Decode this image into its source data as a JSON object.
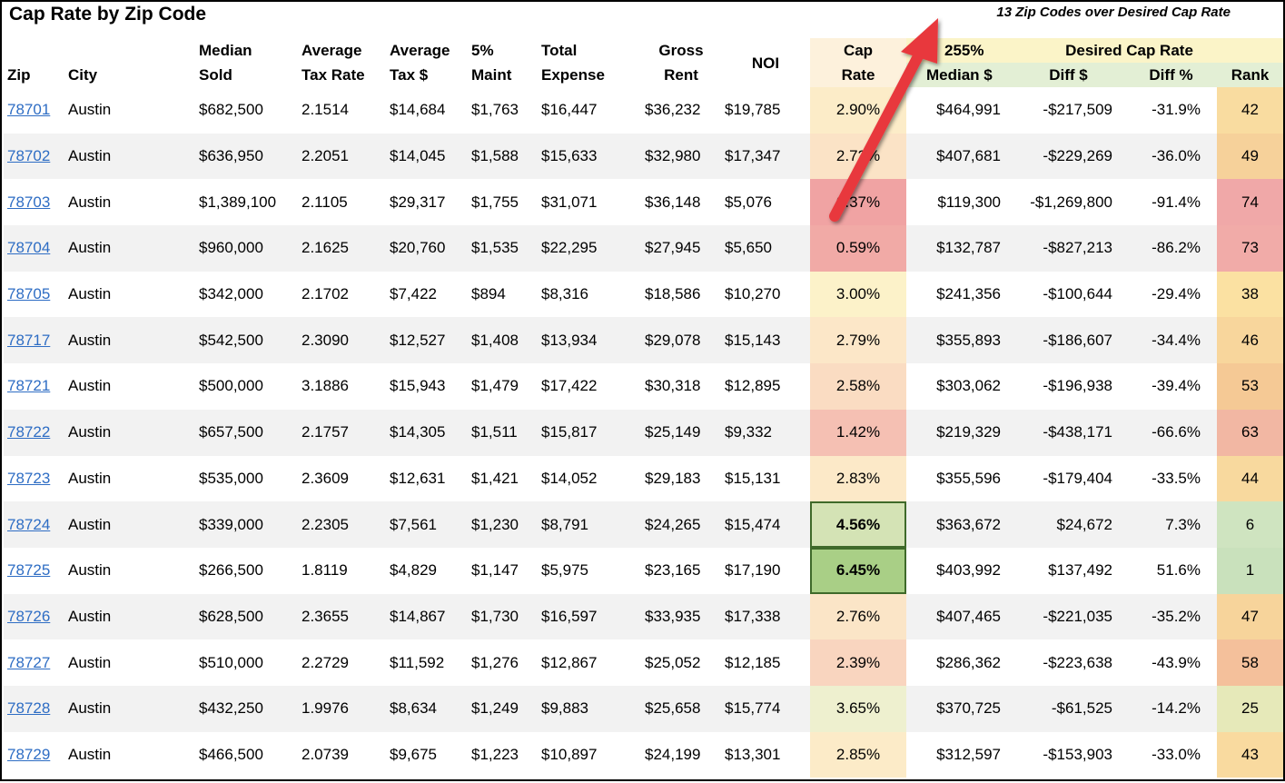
{
  "title": "Cap Rate by Zip Code",
  "annotation": "13 Zip Codes over Desired Cap Rate",
  "group_headers": {
    "median_255_top": "255%",
    "desired_cap_rate": "Desired Cap Rate"
  },
  "columns": {
    "zip": "Zip",
    "city": "City",
    "median_sold_1": "Median",
    "median_sold_2": "Sold",
    "avg_tax_rate_1": "Average",
    "avg_tax_rate_2": "Tax Rate",
    "avg_tax_1": "Average",
    "avg_tax_2": "Tax $",
    "maint_1": "5%",
    "maint_2": "Maint",
    "total_exp_1": "Total",
    "total_exp_2": "Expense",
    "gross_rent_1": "Gross",
    "gross_rent_2": "Rent",
    "noi": "NOI",
    "cap_rate_1": "Cap",
    "cap_rate_2": "Rate",
    "median_dollar": "Median $",
    "diff_dollar": "Diff $",
    "diff_pct": "Diff %",
    "rank": "Rank"
  },
  "rows": [
    {
      "zip": "78701",
      "city": "Austin",
      "median": "$682,500",
      "tax_rate": "2.1514",
      "tax": "$14,684",
      "maint": "$1,763",
      "expense": "$16,447",
      "gross": "$36,232",
      "noi": "$19,785",
      "cap": "2.90%",
      "median255": "$464,991",
      "diff": "-$217,509",
      "diffp": "-31.9%",
      "rank": "42",
      "cap_color": "#fcecc8",
      "rank_color": "#f9dca0"
    },
    {
      "zip": "78702",
      "city": "Austin",
      "median": "$636,950",
      "tax_rate": "2.2051",
      "tax": "$14,045",
      "maint": "$1,588",
      "expense": "$15,633",
      "gross": "$32,980",
      "noi": "$17,347",
      "cap": "2.72%",
      "median255": "$407,681",
      "diff": "-$229,269",
      "diffp": "-36.0%",
      "rank": "49",
      "cap_color": "#fbe3c6",
      "rank_color": "#f6d19a"
    },
    {
      "zip": "78703",
      "city": "Austin",
      "median": "$1,389,100",
      "tax_rate": "2.1105",
      "tax": "$29,317",
      "maint": "$1,755",
      "expense": "$31,071",
      "gross": "$36,148",
      "noi": "$5,076",
      "cap": "0.37%",
      "median255": "$119,300",
      "diff": "-$1,269,800",
      "diffp": "-91.4%",
      "rank": "74",
      "cap_color": "#f0a3a3",
      "rank_color": "#f0a8a8"
    },
    {
      "zip": "78704",
      "city": "Austin",
      "median": "$960,000",
      "tax_rate": "2.1625",
      "tax": "$20,760",
      "maint": "$1,535",
      "expense": "$22,295",
      "gross": "$27,945",
      "noi": "$5,650",
      "cap": "0.59%",
      "median255": "$132,787",
      "diff": "-$827,213",
      "diffp": "-86.2%",
      "rank": "73",
      "cap_color": "#f1aaa6",
      "rank_color": "#f1aba8"
    },
    {
      "zip": "78705",
      "city": "Austin",
      "median": "$342,000",
      "tax_rate": "2.1702",
      "tax": "$7,422",
      "maint": "$894",
      "expense": "$8,316",
      "gross": "$18,586",
      "noi": "$10,270",
      "cap": "3.00%",
      "median255": "$241,356",
      "diff": "-$100,644",
      "diffp": "-29.4%",
      "rank": "38",
      "cap_color": "#fcf2c9",
      "rank_color": "#fbe1a2"
    },
    {
      "zip": "78717",
      "city": "Austin",
      "median": "$542,500",
      "tax_rate": "2.3090",
      "tax": "$12,527",
      "maint": "$1,408",
      "expense": "$13,934",
      "gross": "$29,078",
      "noi": "$15,143",
      "cap": "2.79%",
      "median255": "$355,893",
      "diff": "-$186,607",
      "diffp": "-34.4%",
      "rank": "46",
      "cap_color": "#fce7c8",
      "rank_color": "#f8d69c"
    },
    {
      "zip": "78721",
      "city": "Austin",
      "median": "$500,000",
      "tax_rate": "3.1886",
      "tax": "$15,943",
      "maint": "$1,479",
      "expense": "$17,422",
      "gross": "$30,318",
      "noi": "$12,895",
      "cap": "2.58%",
      "median255": "$303,062",
      "diff": "-$196,938",
      "diffp": "-39.4%",
      "rank": "53",
      "cap_color": "#fadcc2",
      "rank_color": "#f5c995"
    },
    {
      "zip": "78722",
      "city": "Austin",
      "median": "$657,500",
      "tax_rate": "2.1757",
      "tax": "$14,305",
      "maint": "$1,511",
      "expense": "$15,817",
      "gross": "$25,149",
      "noi": "$9,332",
      "cap": "1.42%",
      "median255": "$219,329",
      "diff": "-$438,171",
      "diffp": "-66.6%",
      "rank": "63",
      "cap_color": "#f5c0b3",
      "rank_color": "#f2b7a3"
    },
    {
      "zip": "78723",
      "city": "Austin",
      "median": "$535,000",
      "tax_rate": "2.3609",
      "tax": "$12,631",
      "maint": "$1,421",
      "expense": "$14,052",
      "gross": "$29,183",
      "noi": "$15,131",
      "cap": "2.83%",
      "median255": "$355,596",
      "diff": "-$179,404",
      "diffp": "-33.5%",
      "rank": "44",
      "cap_color": "#fce9c8",
      "rank_color": "#f8d99e"
    },
    {
      "zip": "78724",
      "city": "Austin",
      "median": "$339,000",
      "tax_rate": "2.2305",
      "tax": "$7,561",
      "maint": "$1,230",
      "expense": "$8,791",
      "gross": "$24,265",
      "noi": "$15,474",
      "cap": "4.56%",
      "median255": "$363,672",
      "diff": "$24,672",
      "diffp": "7.3%",
      "rank": "6",
      "cap_color": "#d4e3b5",
      "rank_color": "#cfe4c0",
      "highlight": true
    },
    {
      "zip": "78725",
      "city": "Austin",
      "median": "$266,500",
      "tax_rate": "1.8119",
      "tax": "$4,829",
      "maint": "$1,147",
      "expense": "$5,975",
      "gross": "$23,165",
      "noi": "$17,190",
      "cap": "6.45%",
      "median255": "$403,992",
      "diff": "$137,492",
      "diffp": "51.6%",
      "rank": "1",
      "cap_color": "#a9cf86",
      "rank_color": "#c9e1bc",
      "highlight": true
    },
    {
      "zip": "78726",
      "city": "Austin",
      "median": "$628,500",
      "tax_rate": "2.3655",
      "tax": "$14,867",
      "maint": "$1,730",
      "expense": "$16,597",
      "gross": "$33,935",
      "noi": "$17,338",
      "cap": "2.76%",
      "median255": "$407,465",
      "diff": "-$221,035",
      "diffp": "-35.2%",
      "rank": "47",
      "cap_color": "#fbe5c7",
      "rank_color": "#f7d49b"
    },
    {
      "zip": "78727",
      "city": "Austin",
      "median": "$510,000",
      "tax_rate": "2.2729",
      "tax": "$11,592",
      "maint": "$1,276",
      "expense": "$12,867",
      "gross": "$25,052",
      "noi": "$12,185",
      "cap": "2.39%",
      "median255": "$286,362",
      "diff": "-$223,638",
      "diffp": "-43.9%",
      "rank": "58",
      "cap_color": "#f9d5bf",
      "rank_color": "#f4c09b"
    },
    {
      "zip": "78728",
      "city": "Austin",
      "median": "$432,250",
      "tax_rate": "1.9976",
      "tax": "$8,634",
      "maint": "$1,249",
      "expense": "$9,883",
      "gross": "$25,658",
      "noi": "$15,774",
      "cap": "3.65%",
      "median255": "$370,725",
      "diff": "-$61,525",
      "diffp": "-14.2%",
      "rank": "25",
      "cap_color": "#eef0cf",
      "rank_color": "#e6e9b9"
    },
    {
      "zip": "78729",
      "city": "Austin",
      "median": "$466,500",
      "tax_rate": "2.0739",
      "tax": "$9,675",
      "maint": "$1,223",
      "expense": "$10,897",
      "gross": "$24,199",
      "noi": "$13,301",
      "cap": "2.85%",
      "median255": "$312,597",
      "diff": "-$153,903",
      "diffp": "-33.0%",
      "rank": "43",
      "cap_color": "#fcebc8",
      "rank_color": "#f9da9f"
    }
  ],
  "colors": {
    "link": "#2e6dc4",
    "arrow": "#e8383d",
    "header_yellow": "#fbf4c8",
    "header_green": "#e3efd5",
    "highlight_border": "#3f6a2a"
  }
}
